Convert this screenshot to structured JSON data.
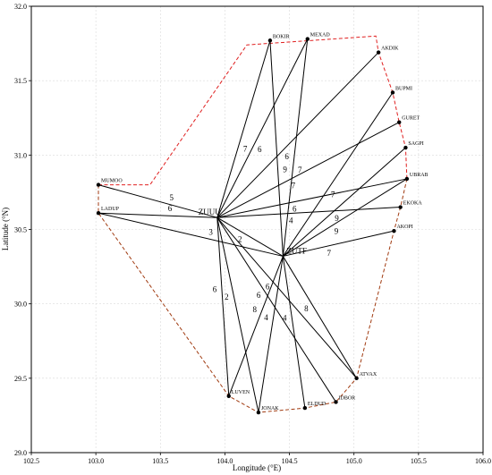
{
  "chart_data": {
    "type": "scatter",
    "xlabel": "Longitude (°E)",
    "ylabel": "Latitude (°N)",
    "xlim": [
      102.5,
      106.0
    ],
    "ylim": [
      29.0,
      32.0
    ],
    "x_ticks": [
      102.5,
      103.0,
      103.5,
      104.0,
      104.5,
      105.0,
      105.5,
      106.0
    ],
    "y_ticks": [
      29.0,
      29.5,
      30.0,
      30.5,
      31.0,
      31.5,
      32.0
    ],
    "x_tick_labels": [
      "102.5",
      "103.0",
      "103.5",
      "104.0",
      "104.5",
      "105.0",
      "105.5",
      "106.0"
    ],
    "y_tick_labels": [
      "29.0",
      "29.5",
      "30.0",
      "30.5",
      "31.0",
      "31.5",
      "32.0"
    ],
    "grid": true,
    "airports": [
      {
        "name": "ZUUU",
        "lon": 103.94,
        "lat": 30.58
      },
      {
        "name": "ZUTF",
        "lon": 104.45,
        "lat": 30.32
      }
    ],
    "waypoints": [
      {
        "name": "BOKIR",
        "lon": 104.35,
        "lat": 31.77
      },
      {
        "name": "MEXAD",
        "lon": 104.64,
        "lat": 31.78
      },
      {
        "name": "AKDIK",
        "lon": 105.19,
        "lat": 31.69
      },
      {
        "name": "BUPMI",
        "lon": 105.3,
        "lat": 31.42
      },
      {
        "name": "GURET",
        "lon": 105.35,
        "lat": 31.22
      },
      {
        "name": "SAGPI",
        "lon": 105.4,
        "lat": 31.05
      },
      {
        "name": "UBRAB",
        "lon": 105.41,
        "lat": 30.84
      },
      {
        "name": "EKOKA",
        "lon": 105.36,
        "lat": 30.65
      },
      {
        "name": "AKOPI",
        "lon": 105.31,
        "lat": 30.49
      },
      {
        "name": "ATVAX",
        "lon": 105.02,
        "lat": 29.5
      },
      {
        "name": "IDBOR",
        "lon": 104.86,
        "lat": 29.34
      },
      {
        "name": "ELDUD",
        "lon": 104.62,
        "lat": 29.3
      },
      {
        "name": "JONAK",
        "lon": 104.26,
        "lat": 29.27
      },
      {
        "name": "LUVEN",
        "lon": 104.03,
        "lat": 29.38
      },
      {
        "name": "LADUP",
        "lon": 103.02,
        "lat": 30.61
      },
      {
        "name": "MUMOO",
        "lon": 103.02,
        "lat": 30.8
      }
    ],
    "routes": [
      {
        "from": "ZUUU",
        "to": "BOKIR",
        "weight": "7"
      },
      {
        "from": "ZUUU",
        "to": "MEXAD",
        "weight": "6"
      },
      {
        "from": "ZUTF",
        "to": "BOKIR",
        "weight": "9"
      },
      {
        "from": "ZUTF",
        "to": "MEXAD",
        "weight": "7"
      },
      {
        "from": "ZUUU",
        "to": "AKDIK",
        "weight": "6"
      },
      {
        "from": "ZUTF",
        "to": "BUPMI",
        "weight": "7"
      },
      {
        "from": "ZUUU",
        "to": "GURET",
        "weight": "7"
      },
      {
        "from": "ZUTF",
        "to": "SAGPI",
        "weight": "9"
      },
      {
        "from": "ZUUU",
        "to": "UBRAB",
        "weight": "6"
      },
      {
        "from": "ZUUU",
        "to": "EKOKA",
        "weight": "4"
      },
      {
        "from": "ZUTF",
        "to": "UBRAB",
        "weight": "9"
      },
      {
        "from": "ZUTF",
        "to": "AKOPI",
        "weight": "7"
      },
      {
        "from": "ZUUU",
        "to": "MUMOO",
        "weight": "5"
      },
      {
        "from": "ZUUU",
        "to": "LADUP",
        "weight": "6"
      },
      {
        "from": "ZUTF",
        "to": "LADUP",
        "weight": "3"
      },
      {
        "from": "ZUUU",
        "to": "ZUTF",
        "weight": "2"
      },
      {
        "from": "ZUUU",
        "to": "ATVAX",
        "weight": "6"
      },
      {
        "from": "ZUUU",
        "to": "IDBOR",
        "weight": "6"
      },
      {
        "from": "ZUTF",
        "to": "ATVAX",
        "weight": "8"
      },
      {
        "from": "ZUUU",
        "to": "LUVEN",
        "weight": "6"
      },
      {
        "from": "ZUUU",
        "to": "JONAK",
        "weight": "2"
      },
      {
        "from": "ZUTF",
        "to": "LUVEN",
        "weight": "8"
      },
      {
        "from": "ZUTF",
        "to": "JONAK",
        "weight": "4"
      },
      {
        "from": "ZUTF",
        "to": "ELDUD",
        "weight": "4"
      }
    ],
    "boundary_north": [
      [
        103.02,
        30.8
      ],
      [
        103.42,
        30.8
      ],
      [
        104.17,
        31.74
      ],
      [
        105.17,
        31.8
      ],
      [
        105.19,
        31.69
      ],
      [
        105.3,
        31.42
      ],
      [
        105.35,
        31.22
      ],
      [
        105.4,
        31.05
      ],
      [
        105.41,
        30.84
      ]
    ],
    "boundary_south": [
      [
        103.02,
        30.8
      ],
      [
        103.02,
        30.61
      ],
      [
        104.03,
        29.38
      ],
      [
        104.26,
        29.27
      ],
      [
        104.62,
        29.3
      ],
      [
        104.86,
        29.34
      ],
      [
        105.02,
        29.5
      ],
      [
        105.31,
        30.49
      ],
      [
        105.36,
        30.65
      ],
      [
        105.41,
        30.84
      ]
    ],
    "colors": {
      "route": "#000000",
      "boundary_north": "#e02020",
      "boundary_south": "#a03a10",
      "grid": "#d9d9d9"
    }
  }
}
